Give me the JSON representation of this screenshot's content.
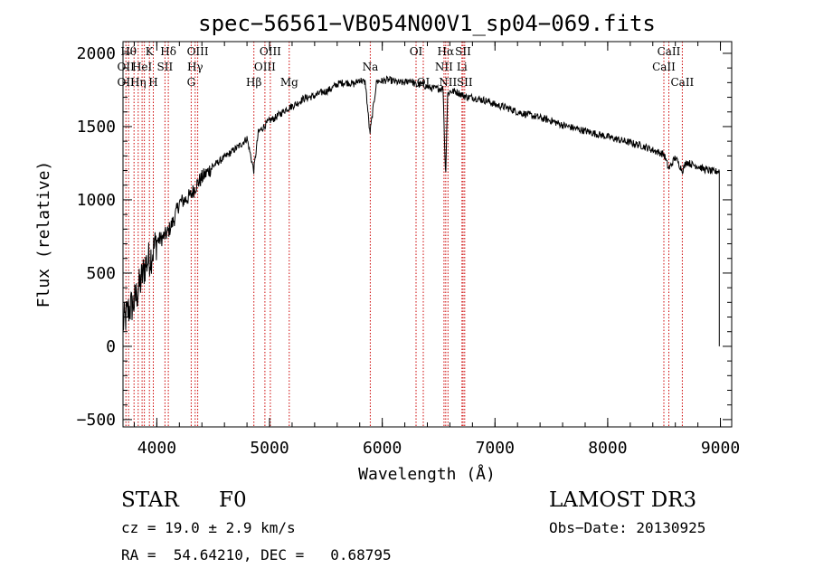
{
  "chart_data": {
    "type": "line",
    "title": "spec−56561−VB054N00V1_sp04−069.fits",
    "xlabel": "Wavelength (Å)",
    "ylabel": "Flux (relative)",
    "xlim": [
      3700,
      9100
    ],
    "ylim": [
      -550,
      2080
    ],
    "xticks": [
      4000,
      5000,
      6000,
      7000,
      8000,
      9000
    ],
    "yticks": [
      -500,
      0,
      500,
      1000,
      1500,
      2000
    ],
    "ytick_labels": [
      "−500",
      "0",
      "500",
      "1000",
      "1500",
      "2000"
    ],
    "series": [
      {
        "name": "flux",
        "x": [
          3700,
          3750,
          3800,
          3850,
          3900,
          3950,
          4000,
          4050,
          4100,
          4150,
          4200,
          4250,
          4300,
          4350,
          4400,
          4450,
          4500,
          4550,
          4600,
          4650,
          4700,
          4750,
          4800,
          4860,
          4900,
          4950,
          5000,
          5050,
          5100,
          5150,
          5200,
          5250,
          5300,
          5350,
          5400,
          5450,
          5500,
          5550,
          5600,
          5650,
          5700,
          5750,
          5800,
          5850,
          5890,
          5950,
          6000,
          6050,
          6100,
          6150,
          6200,
          6250,
          6300,
          6350,
          6400,
          6450,
          6500,
          6540,
          6562,
          6580,
          6600,
          6650,
          6700,
          6750,
          6800,
          6850,
          6900,
          6950,
          7000,
          7100,
          7200,
          7300,
          7400,
          7500,
          7600,
          7700,
          7800,
          7900,
          8000,
          8100,
          8200,
          8300,
          8400,
          8500,
          8542,
          8600,
          8662,
          8700,
          8750,
          8800,
          8850,
          8900,
          8950,
          8990
        ],
        "y": [
          150,
          250,
          300,
          420,
          560,
          620,
          720,
          740,
          780,
          860,
          980,
          1000,
          1030,
          1100,
          1150,
          1190,
          1230,
          1260,
          1290,
          1320,
          1350,
          1380,
          1420,
          1200,
          1460,
          1500,
          1540,
          1560,
          1590,
          1620,
          1640,
          1660,
          1690,
          1700,
          1710,
          1730,
          1740,
          1760,
          1790,
          1800,
          1800,
          1790,
          1820,
          1800,
          1450,
          1810,
          1810,
          1820,
          1810,
          1800,
          1800,
          1820,
          1780,
          1790,
          1770,
          1760,
          1760,
          1760,
          1150,
          1720,
          1740,
          1740,
          1720,
          1700,
          1700,
          1690,
          1680,
          1670,
          1650,
          1630,
          1600,
          1580,
          1560,
          1540,
          1510,
          1490,
          1470,
          1450,
          1430,
          1410,
          1390,
          1370,
          1340,
          1310,
          1210,
          1290,
          1200,
          1260,
          1240,
          1230,
          1210,
          1200,
          1190,
          1200
        ]
      }
    ],
    "line_markers": [
      {
        "x": 3726,
        "labels": [
          "OII"
        ]
      },
      {
        "x": 3750,
        "labels": [
          "Hθ"
        ]
      },
      {
        "x": 3798,
        "labels": [
          "Hη"
        ]
      },
      {
        "x": 3835,
        "labels": [
          "Hη"
        ]
      },
      {
        "x": 3869,
        "labels": [
          "HeI"
        ]
      },
      {
        "x": 3889,
        "labels": [
          "HeI"
        ]
      },
      {
        "x": 3934,
        "labels": [
          "K"
        ]
      },
      {
        "x": 3969,
        "labels": [
          "H"
        ]
      },
      {
        "x": 4072,
        "labels": [
          "SII"
        ]
      },
      {
        "x": 4102,
        "labels": [
          "Hδ"
        ]
      },
      {
        "x": 4305,
        "labels": [
          "G"
        ]
      },
      {
        "x": 4340,
        "labels": [
          "Hγ"
        ]
      },
      {
        "x": 4363,
        "labels": [
          "OIII"
        ]
      },
      {
        "x": 4861,
        "labels": [
          "Hβ"
        ]
      },
      {
        "x": 4959,
        "labels": [
          "OIII"
        ]
      },
      {
        "x": 5007,
        "labels": [
          "OIII"
        ]
      },
      {
        "x": 5175,
        "labels": [
          "Mg"
        ]
      },
      {
        "x": 5894,
        "labels": [
          "Na"
        ]
      },
      {
        "x": 6300,
        "labels": [
          "OI"
        ]
      },
      {
        "x": 6364,
        "labels": [
          "OI"
        ]
      },
      {
        "x": 6548,
        "labels": [
          "NII"
        ]
      },
      {
        "x": 6563,
        "labels": [
          "Hα"
        ]
      },
      {
        "x": 6583,
        "labels": [
          "NII"
        ]
      },
      {
        "x": 6707,
        "labels": [
          "Li"
        ]
      },
      {
        "x": 6717,
        "labels": [
          "SII"
        ]
      },
      {
        "x": 6731,
        "labels": [
          "SII"
        ]
      },
      {
        "x": 8498,
        "labels": [
          "CaII"
        ]
      },
      {
        "x": 8542,
        "labels": [
          "CaII"
        ]
      },
      {
        "x": 8662,
        "labels": [
          "CaII"
        ]
      }
    ],
    "marker_labels": [
      {
        "text": "Hθ",
        "x": 3750,
        "row": 1
      },
      {
        "text": "K",
        "x": 3934,
        "row": 1
      },
      {
        "text": "Hδ",
        "x": 4102,
        "row": 1
      },
      {
        "text": "OIII",
        "x": 4363,
        "row": 1
      },
      {
        "text": "OIII",
        "x": 5007,
        "row": 1
      },
      {
        "text": "OI",
        "x": 6300,
        "row": 1
      },
      {
        "text": "Hα",
        "x": 6563,
        "row": 1
      },
      {
        "text": "SII",
        "x": 6717,
        "row": 1
      },
      {
        "text": "CaII",
        "x": 8542,
        "row": 1
      },
      {
        "text": "OII",
        "x": 3726,
        "row": 2
      },
      {
        "text": "HeI",
        "x": 3869,
        "row": 2
      },
      {
        "text": "SII",
        "x": 4072,
        "row": 2
      },
      {
        "text": "Hγ",
        "x": 4340,
        "row": 2
      },
      {
        "text": "OIII",
        "x": 4959,
        "row": 2
      },
      {
        "text": "Na",
        "x": 5894,
        "row": 2
      },
      {
        "text": "NII",
        "x": 6548,
        "row": 2
      },
      {
        "text": "Li",
        "x": 6707,
        "row": 2
      },
      {
        "text": "CaII",
        "x": 8498,
        "row": 2
      },
      {
        "text": "OII",
        "x": 3726,
        "row": 3
      },
      {
        "text": "Hη",
        "x": 3835,
        "row": 3
      },
      {
        "text": "H",
        "x": 3969,
        "row": 3
      },
      {
        "text": "G",
        "x": 4305,
        "row": 3
      },
      {
        "text": "Hβ",
        "x": 4861,
        "row": 3
      },
      {
        "text": "Mg",
        "x": 5175,
        "row": 3
      },
      {
        "text": "OI",
        "x": 6364,
        "row": 3
      },
      {
        "text": "NII",
        "x": 6583,
        "row": 3
      },
      {
        "text": "SII",
        "x": 6731,
        "row": 3
      },
      {
        "text": "CaII",
        "x": 8662,
        "row": 3
      }
    ],
    "line_color": "#000000",
    "marker_color": "#cc0000"
  },
  "footer": {
    "object_class": "STAR",
    "subclass": "F0",
    "survey": "LAMOST DR3",
    "redshift_line": "cz = 19.0 ± 2.9 km/s",
    "obs_date_line": "Obs−Date: 20130925",
    "coords_line": "RA =  54.64210, DEC =   0.68795"
  }
}
